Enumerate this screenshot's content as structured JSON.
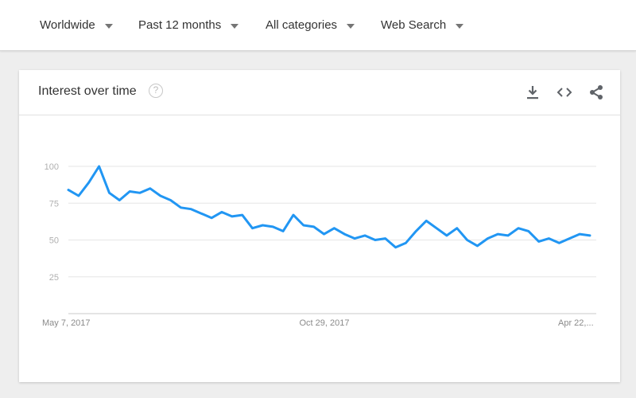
{
  "filters": [
    {
      "label": "Worldwide"
    },
    {
      "label": "Past 12 months"
    },
    {
      "label": "All categories"
    },
    {
      "label": "Web Search"
    }
  ],
  "card": {
    "title": "Interest over time",
    "help_glyph": "?",
    "actions": [
      "download-icon",
      "embed-icon",
      "share-icon"
    ]
  },
  "colors": {
    "line": "#2196f3",
    "grid": "#e6e6e6",
    "axis": "#c8c8c8"
  },
  "chart_data": {
    "type": "line",
    "x_labels": [
      "May 7, 2017",
      "Oct 29, 2017",
      "Apr 22,..."
    ],
    "y_ticks": [
      25,
      50,
      75,
      100
    ],
    "ylim": [
      0,
      100
    ],
    "grid": true,
    "series": [
      {
        "values": [
          84,
          80,
          89,
          100,
          82,
          77,
          83,
          82,
          85,
          80,
          77,
          72,
          71,
          68,
          65,
          69,
          66,
          67,
          58,
          60,
          59,
          56,
          67,
          60,
          59,
          54,
          58,
          54,
          51,
          53,
          50,
          51,
          45,
          48,
          56,
          63,
          58,
          53,
          58,
          50,
          46,
          51,
          54,
          53,
          58,
          56,
          49,
          51,
          48,
          51,
          54,
          53
        ]
      }
    ]
  }
}
